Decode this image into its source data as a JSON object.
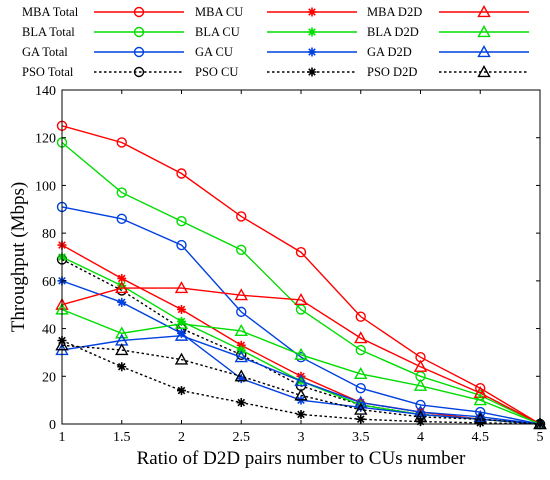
{
  "chart_data": {
    "type": "line",
    "title": "",
    "xlabel": "Ratio of D2D pairs number to CUs number",
    "ylabel": "Throughput (Mbps)",
    "x": [
      1,
      1.5,
      2,
      2.5,
      3,
      3.5,
      4,
      4.5,
      5
    ],
    "xticks": [
      "1",
      "1.5",
      "2",
      "2.5",
      "3",
      "3.5",
      "4",
      "4.5",
      "5"
    ],
    "xlim": [
      1,
      5
    ],
    "ylim": [
      0,
      140
    ],
    "yticks": [
      "0",
      "20",
      "40",
      "60",
      "80",
      "100",
      "120",
      "140"
    ],
    "grid": false,
    "legend_position": "top",
    "series": [
      {
        "name": "MBA Total",
        "color": "#ff0000",
        "dash": "solid",
        "marker": "circle",
        "values": [
          125,
          118,
          105,
          87,
          72,
          45,
          28,
          15,
          0
        ]
      },
      {
        "name": "BLA Total",
        "color": "#00dd00",
        "dash": "solid",
        "marker": "circle",
        "values": [
          118,
          97,
          85,
          73,
          48,
          31,
          20,
          12,
          0
        ]
      },
      {
        "name": "GA Total",
        "color": "#0040e0",
        "dash": "solid",
        "marker": "circle",
        "values": [
          91,
          86,
          75,
          47,
          28,
          15,
          8,
          5,
          0
        ]
      },
      {
        "name": "PSO Total",
        "color": "#000000",
        "dash": "dotted",
        "marker": "circle",
        "values": [
          69,
          56,
          40,
          29,
          16,
          8,
          4,
          2,
          0
        ]
      },
      {
        "name": "MBA CU",
        "color": "#ff0000",
        "dash": "solid",
        "marker": "star",
        "values": [
          75,
          61,
          48,
          33,
          20,
          9,
          5,
          2,
          0
        ]
      },
      {
        "name": "BLA CU",
        "color": "#00dd00",
        "dash": "solid",
        "marker": "star",
        "values": [
          70,
          58,
          43,
          31,
          18,
          8,
          4,
          2,
          0
        ]
      },
      {
        "name": "GA CU",
        "color": "#0040e0",
        "dash": "solid",
        "marker": "star",
        "values": [
          60,
          51,
          38,
          19,
          10,
          7,
          4,
          2,
          0
        ]
      },
      {
        "name": "PSO CU",
        "color": "#000000",
        "dash": "dotted",
        "marker": "star",
        "values": [
          35,
          24,
          14,
          9,
          4,
          2,
          1,
          0.5,
          0
        ]
      },
      {
        "name": "MBA D2D",
        "color": "#ff0000",
        "dash": "solid",
        "marker": "triangle",
        "values": [
          50,
          57,
          57,
          54,
          52,
          36,
          24,
          13,
          0
        ]
      },
      {
        "name": "BLA D2D",
        "color": "#00dd00",
        "dash": "solid",
        "marker": "triangle",
        "values": [
          48,
          38,
          42,
          39,
          29,
          21,
          16,
          10,
          0
        ]
      },
      {
        "name": "GA D2D",
        "color": "#0040e0",
        "dash": "solid",
        "marker": "triangle",
        "values": [
          31,
          35,
          37,
          28,
          18,
          9,
          5,
          3,
          0
        ]
      },
      {
        "name": "PSO D2D",
        "color": "#000000",
        "dash": "dotted",
        "marker": "triangle",
        "values": [
          33,
          31,
          27,
          20,
          12,
          6,
          3,
          2,
          0
        ]
      }
    ]
  }
}
